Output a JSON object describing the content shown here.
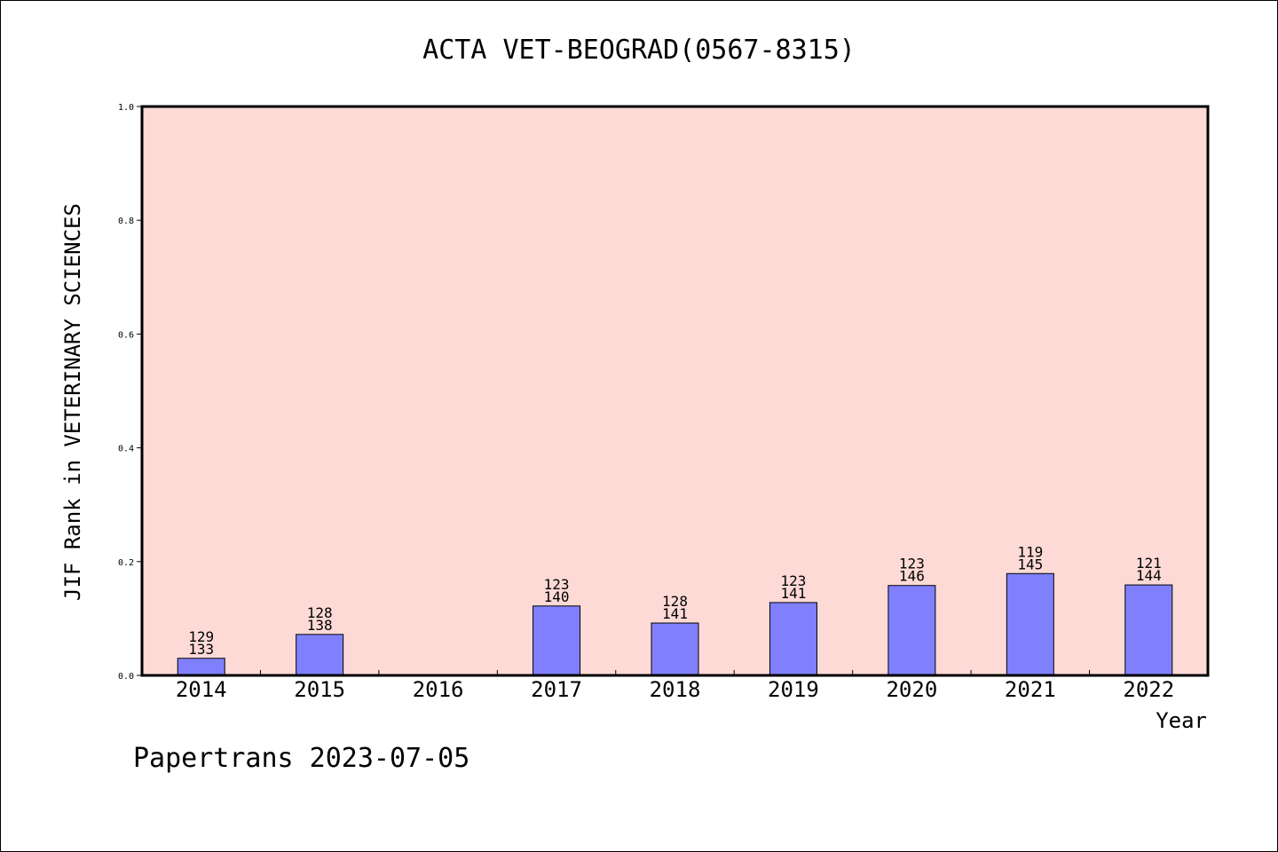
{
  "chart_data": {
    "type": "bar",
    "title": "ACTA VET-BEOGRAD(0567-8315)",
    "xlabel": "Year",
    "ylabel": "JIF Rank in VETERINARY SCIENCES",
    "ylim": [
      0,
      1.0
    ],
    "yticks": [
      "0.0",
      "0.2",
      "0.4",
      "0.6",
      "0.8",
      "1.0"
    ],
    "categories": [
      "2014",
      "2015",
      "2016",
      "2017",
      "2018",
      "2019",
      "2020",
      "2021",
      "2022"
    ],
    "values": [
      0.03,
      0.072,
      null,
      0.122,
      0.092,
      0.128,
      0.158,
      0.179,
      0.159
    ],
    "rank": [
      "129",
      "128",
      "",
      "123",
      "128",
      "123",
      "123",
      "119",
      "121"
    ],
    "total": [
      "133",
      "138",
      "",
      "140",
      "141",
      "141",
      "146",
      "145",
      "144"
    ],
    "grid": false,
    "plot_background": "#fddad6",
    "bar_color": "#8080ff"
  },
  "footer": "Papertrans 2023-07-05"
}
